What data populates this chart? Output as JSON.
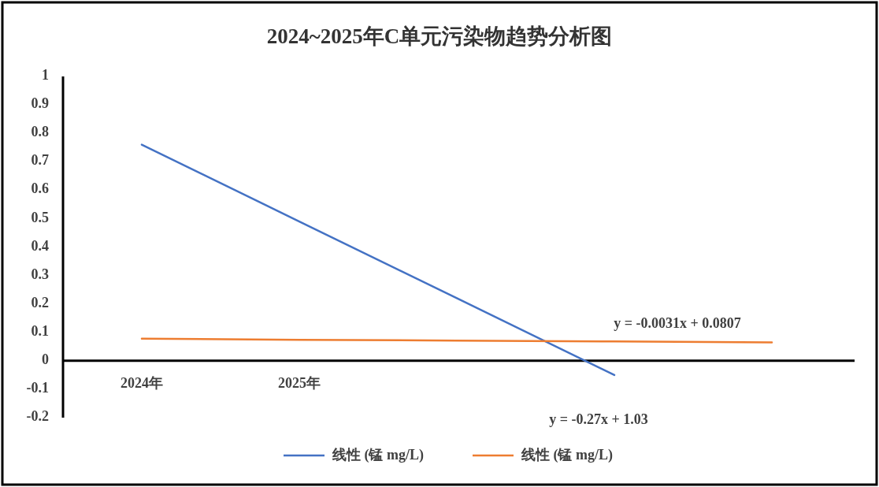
{
  "chart_data": {
    "type": "line",
    "title": "2024~2025年C单元污染物趋势分析图",
    "categories": [
      "2024年",
      "2025年",
      null,
      null,
      null
    ],
    "ylim": [
      -0.2,
      1
    ],
    "yticks": [
      -0.2,
      -0.1,
      0,
      0.1,
      0.2,
      0.3,
      0.4,
      0.5,
      0.6,
      0.7,
      0.8,
      0.9,
      1
    ],
    "series": [
      {
        "name": "线性 (锰 mg/L)",
        "color": "#4472c4",
        "values": [
          0.76,
          0.49,
          0.22,
          -0.05,
          null
        ]
      },
      {
        "name": "线性 (锰 mg/L)",
        "color": "#ed7d31",
        "values": [
          0.078,
          0.074,
          0.071,
          0.068,
          0.065
        ]
      }
    ],
    "annotations": [
      "y = -0.0031x + 0.0807",
      "y = -0.27x + 1.03"
    ],
    "legend": "bottom"
  }
}
